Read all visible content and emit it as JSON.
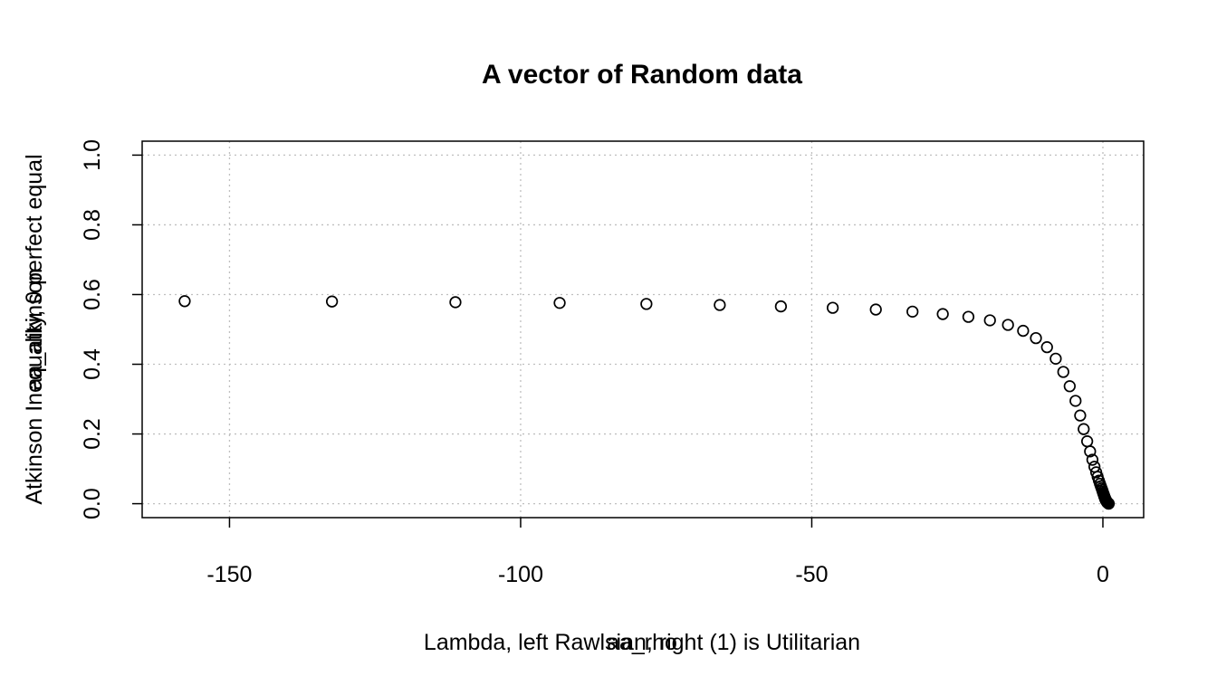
{
  "chart_data": {
    "type": "scatter",
    "title": "A vector of Random data",
    "xlabel": "Lambda, left Rawlsian, right (1) is Utilitarian",
    "xlabel_overlay": "aa_rho",
    "ylabel": "Atkinson Inequality, 0 perfect equal",
    "ylabel_overlay": "aa_atkinson",
    "xlim": [
      -165,
      7
    ],
    "ylim": [
      -0.04,
      1.04
    ],
    "xticks": [
      -150,
      -100,
      -50,
      0
    ],
    "yticks": [
      0.0,
      0.2,
      0.4,
      0.6,
      0.8,
      1.0
    ],
    "xtick_labels": [
      "-150",
      "-100",
      "-50",
      "0"
    ],
    "ytick_labels": [
      "0.0",
      "0.2",
      "0.4",
      "0.6",
      "0.8",
      "1.0"
    ],
    "grid": true,
    "marker": "open-circle",
    "x": [
      -157.7,
      -132.4,
      -111.2,
      -93.3,
      -78.4,
      -65.8,
      -55.3,
      -46.4,
      -39.0,
      -32.7,
      -27.5,
      -23.1,
      -19.4,
      -16.3,
      -13.7,
      -11.5,
      -9.6,
      -8.1,
      -6.8,
      -5.7,
      -4.7,
      -3.9,
      -3.3,
      -2.7,
      -2.2,
      -1.8,
      -1.45,
      -1.15,
      -0.9,
      -0.68,
      -0.5,
      -0.35,
      -0.22,
      -0.11,
      -0.02,
      0.06,
      0.13,
      0.19,
      0.24,
      0.29,
      0.34,
      0.38,
      0.42,
      0.46,
      0.5,
      0.54,
      0.58,
      0.62,
      0.66,
      0.7,
      0.74,
      0.78,
      0.82,
      0.86,
      0.9,
      0.94,
      0.97,
      1.0
    ],
    "y": [
      0.581,
      0.58,
      0.578,
      0.576,
      0.573,
      0.57,
      0.566,
      0.562,
      0.557,
      0.551,
      0.544,
      0.536,
      0.526,
      0.513,
      0.496,
      0.475,
      0.449,
      0.416,
      0.378,
      0.337,
      0.295,
      0.253,
      0.214,
      0.179,
      0.15,
      0.126,
      0.106,
      0.09,
      0.077,
      0.066,
      0.057,
      0.05,
      0.044,
      0.039,
      0.034,
      0.03,
      0.027,
      0.024,
      0.021,
      0.019,
      0.017,
      0.015,
      0.013,
      0.012,
      0.01,
      0.009,
      0.008,
      0.007,
      0.006,
      0.005,
      0.004,
      0.003,
      0.0025,
      0.002,
      0.0015,
      0.001,
      0.0005,
      0.0
    ]
  }
}
